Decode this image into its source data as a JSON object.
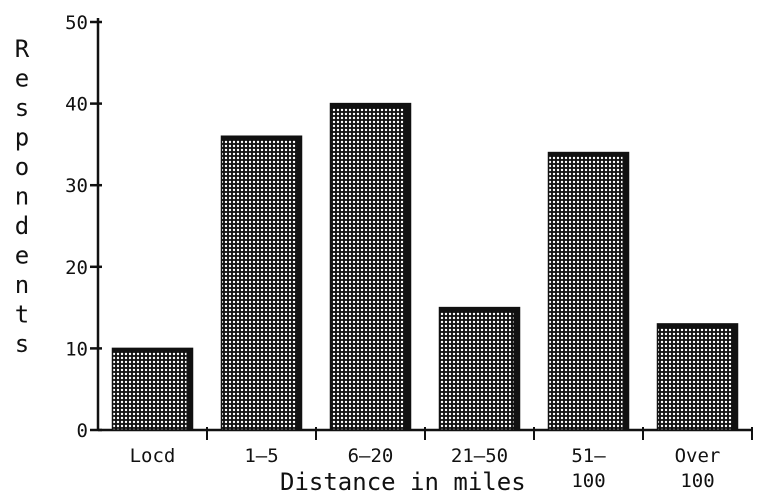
{
  "chart_data": {
    "type": "bar",
    "categories": [
      "Locd",
      "1–5",
      "6–20",
      "21–50",
      "51–\n100",
      "Over\n100"
    ],
    "values": [
      10,
      36,
      40,
      15,
      34,
      13
    ],
    "xlabel": "Distance in miles",
    "ylabel": "Respondents",
    "ylim": [
      0,
      50
    ],
    "yticks": [
      0,
      10,
      20,
      30,
      40,
      50
    ],
    "grid": false,
    "colors": {
      "bar_fill": "#111111",
      "bar_dots": "#ffffff",
      "axis": "#111111"
    }
  }
}
